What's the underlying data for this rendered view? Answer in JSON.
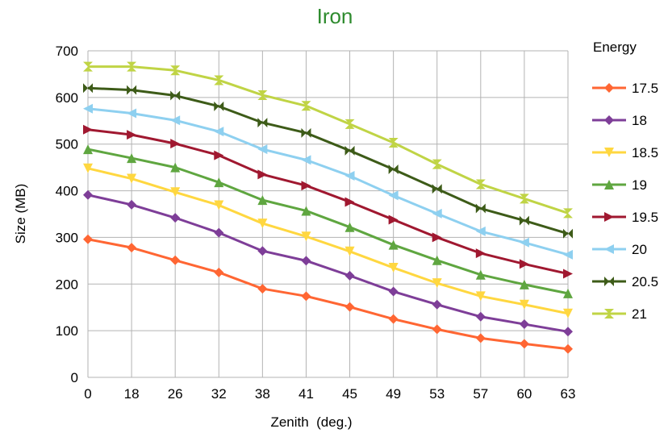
{
  "chart_data": {
    "type": "line",
    "title": "Iron",
    "xlabel": "Zenith  (deg.)",
    "ylabel": "Size (MB)",
    "ylim": [
      0,
      700
    ],
    "yticks": [
      0,
      100,
      200,
      300,
      400,
      500,
      600,
      700
    ],
    "grid": true,
    "legend_position": "right",
    "legend_title": "Energy",
    "categories": [
      "0",
      "18",
      "26",
      "32",
      "38",
      "41",
      "45",
      "49",
      "53",
      "57",
      "60",
      "63"
    ],
    "series": [
      {
        "name": "17.5",
        "color": "#ff6633",
        "marker": "diamond",
        "values": [
          296,
          278,
          251,
          225,
          190,
          174,
          151,
          125,
          103,
          84,
          72,
          61
        ]
      },
      {
        "name": "18",
        "color": "#7e3e98",
        "marker": "diamond",
        "values": [
          391,
          370,
          342,
          310,
          271,
          250,
          218,
          184,
          156,
          130,
          114,
          98
        ]
      },
      {
        "name": "18.5",
        "color": "#ffd740",
        "marker": "triangle-down",
        "values": [
          448,
          426,
          397,
          369,
          330,
          302,
          270,
          235,
          202,
          174,
          156,
          137
        ]
      },
      {
        "name": "19",
        "color": "#5fa640",
        "marker": "triangle-up",
        "values": [
          489,
          470,
          450,
          418,
          380,
          357,
          322,
          284,
          251,
          220,
          199,
          180
        ]
      },
      {
        "name": "19.5",
        "color": "#a01830",
        "marker": "triangle-right",
        "values": [
          531,
          520,
          501,
          476,
          435,
          411,
          376,
          338,
          300,
          266,
          243,
          222
        ]
      },
      {
        "name": "20",
        "color": "#8ed0f0",
        "marker": "triangle-left",
        "values": [
          576,
          566,
          551,
          527,
          489,
          466,
          432,
          390,
          351,
          313,
          289,
          263
        ]
      },
      {
        "name": "20.5",
        "color": "#3d5b18",
        "marker": "bowtie",
        "values": [
          620,
          616,
          604,
          581,
          546,
          524,
          486,
          446,
          404,
          362,
          336,
          308
        ]
      },
      {
        "name": "21",
        "color": "#c0d445",
        "marker": "hourglass",
        "values": [
          666,
          666,
          658,
          637,
          605,
          582,
          543,
          503,
          457,
          414,
          383,
          352
        ]
      }
    ]
  }
}
